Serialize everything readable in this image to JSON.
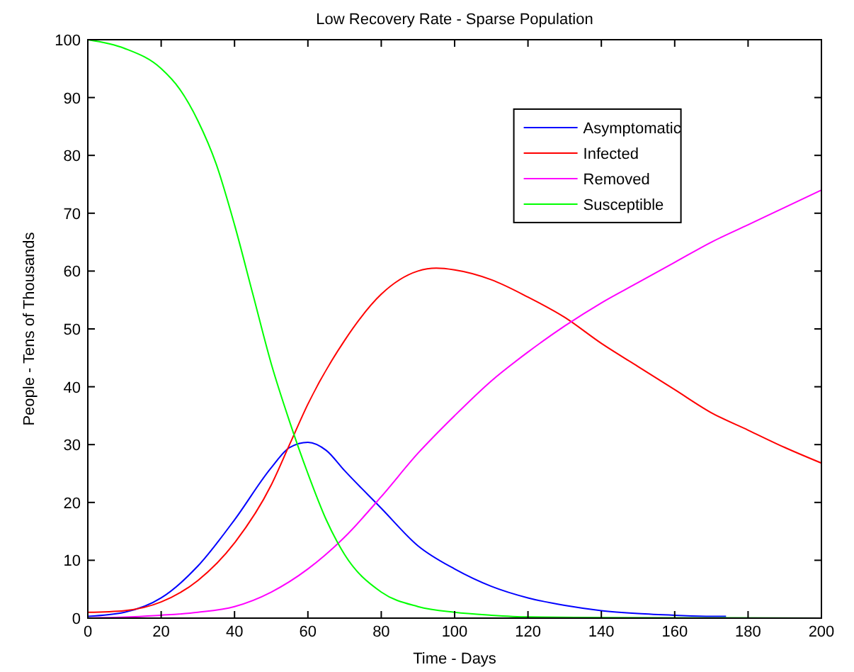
{
  "chart_data": {
    "type": "line",
    "title": "Low Recovery Rate - Sparse Population",
    "xlabel": "Time - Days",
    "ylabel": "People - Tens of Thousands",
    "xlim": [
      0,
      200
    ],
    "ylim": [
      0,
      100
    ],
    "xticks": [
      0,
      20,
      40,
      60,
      80,
      100,
      120,
      140,
      160,
      180,
      200
    ],
    "yticks": [
      0,
      10,
      20,
      30,
      40,
      50,
      60,
      70,
      80,
      90,
      100
    ],
    "grid": false,
    "legend": "top right",
    "series": [
      {
        "name": "Asymptomatic",
        "color": "#0000ff",
        "x": [
          0,
          10,
          20,
          30,
          40,
          50,
          55,
          60,
          65,
          70,
          80,
          90,
          100,
          110,
          120,
          130,
          140,
          150,
          160,
          170,
          174
        ],
        "values": [
          0.3,
          1,
          3.5,
          9,
          17,
          26,
          29.5,
          30.4,
          29,
          25.5,
          19,
          12.5,
          8.5,
          5.5,
          3.5,
          2.2,
          1.3,
          0.8,
          0.5,
          0.3,
          0.3
        ]
      },
      {
        "name": "Infected",
        "color": "#ff0000",
        "x": [
          0,
          10,
          20,
          30,
          40,
          50,
          55,
          60,
          70,
          80,
          90,
          95,
          100,
          110,
          120,
          130,
          140,
          150,
          160,
          170,
          180,
          190,
          200
        ],
        "values": [
          1,
          1.3,
          2.8,
          6.5,
          13,
          23,
          30,
          37,
          48,
          56,
          60,
          60.5,
          60.2,
          58.5,
          55.5,
          52,
          47.5,
          43.5,
          39.5,
          35.5,
          32.5,
          29.5,
          26.8
        ]
      },
      {
        "name": "Removed",
        "color": "#ff00ff",
        "x": [
          0,
          20,
          30,
          40,
          50,
          60,
          70,
          80,
          90,
          100,
          110,
          120,
          130,
          140,
          150,
          160,
          170,
          180,
          190,
          200
        ],
        "values": [
          0,
          0.5,
          1,
          2,
          4.5,
          8.5,
          14,
          21,
          28.5,
          35,
          41,
          46,
          50.5,
          54.5,
          58,
          61.5,
          65,
          68,
          71,
          74
        ]
      },
      {
        "name": "Susceptible",
        "color": "#00ff00",
        "x": [
          0,
          10,
          20,
          25,
          30,
          35,
          40,
          45,
          50,
          55,
          60,
          65,
          70,
          80,
          90,
          100,
          110,
          120,
          140,
          200
        ],
        "values": [
          100,
          98.5,
          95,
          91.5,
          86,
          78.5,
          68,
          56,
          44,
          34,
          25,
          17,
          11,
          4.5,
          2,
          1,
          0.5,
          0.2,
          0.1,
          0
        ]
      }
    ]
  }
}
